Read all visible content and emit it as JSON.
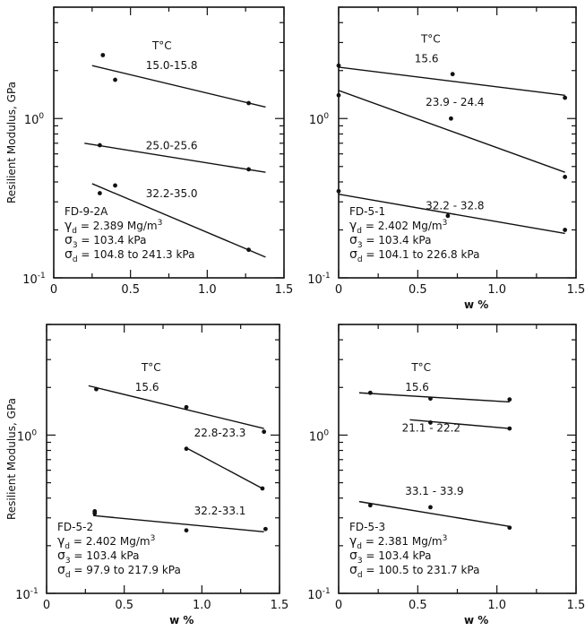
{
  "chart_data": [
    {
      "type": "scatter",
      "panel": "FD-9-2A",
      "specimen": "FD-9-2A",
      "xlabel": "",
      "ylabel": "Resilient Modulus, GPa",
      "xlim": [
        0,
        1.5
      ],
      "ylim": [
        0.1,
        5
      ],
      "yscale": "log",
      "x_ticks": [
        "0",
        "0.5",
        "1.0",
        "1.5"
      ],
      "y_ticks": [
        {
          "base": "10",
          "exp": "0",
          "value": 1
        },
        {
          "base": "10",
          "exp": "-1",
          "value": 0.1
        }
      ],
      "legend_title": "T°C",
      "conditions": [
        {
          "base": "γ",
          "sub": "d",
          "text": " = 2.389 Mg/m",
          "sup": "3"
        },
        {
          "base": "σ",
          "sub": "3",
          "text": " = 103.4 kPa",
          "sup": ""
        },
        {
          "base": "σ",
          "sub": "d",
          "text": " = 104.8 to 241.3 kPa",
          "sup": ""
        }
      ],
      "series": [
        {
          "name": "15.0-15.8",
          "points": [
            [
              0.32,
              2.5
            ],
            [
              0.4,
              1.75
            ],
            [
              1.27,
              1.25
            ]
          ],
          "fit": [
            [
              0.25,
              2.15
            ],
            [
              1.38,
              1.18
            ]
          ],
          "label_at": [
            0.6,
            2.05
          ]
        },
        {
          "name": "25.0-25.6",
          "points": [
            [
              0.3,
              0.68
            ],
            [
              1.27,
              0.48
            ]
          ],
          "fit": [
            [
              0.2,
              0.7
            ],
            [
              1.38,
              0.46
            ]
          ],
          "label_at": [
            0.6,
            0.64
          ]
        },
        {
          "name": "32.2-35.0",
          "points": [
            [
              0.3,
              0.34
            ],
            [
              0.4,
              0.38
            ],
            [
              1.27,
              0.15
            ]
          ],
          "fit": [
            [
              0.25,
              0.39
            ],
            [
              1.38,
              0.135
            ]
          ],
          "label_at": [
            0.6,
            0.32
          ]
        }
      ]
    },
    {
      "type": "scatter",
      "panel": "FD-5-1",
      "specimen": "FD-5-1",
      "xlabel": "w %",
      "ylabel": "",
      "xlim": [
        0,
        1.5
      ],
      "ylim": [
        0.1,
        5
      ],
      "yscale": "log",
      "x_ticks": [
        "0",
        "0.5",
        "1.0",
        "1.5"
      ],
      "y_ticks": [
        {
          "base": "10",
          "exp": "0",
          "value": 1
        },
        {
          "base": "10",
          "exp": "-1",
          "value": 0.1
        }
      ],
      "legend_title": "T°C",
      "conditions": [
        {
          "base": "γ",
          "sub": "d",
          "text": " = 2.402 Mg/m",
          "sup": "3"
        },
        {
          "base": "σ",
          "sub": "3",
          "text": " = 103.4 kPa",
          "sup": ""
        },
        {
          "base": "σ",
          "sub": "d",
          "text": " = 104.1 to 226.8 kPa",
          "sup": ""
        }
      ],
      "series": [
        {
          "name": "15.6",
          "points": [
            [
              0.0,
              2.15
            ],
            [
              0.72,
              1.9
            ],
            [
              1.43,
              1.35
            ]
          ],
          "fit": [
            [
              0.0,
              2.1
            ],
            [
              1.43,
              1.4
            ]
          ],
          "label_at": [
            0.48,
            2.25
          ]
        },
        {
          "name": "23.9 - 24.4",
          "points": [
            [
              0.0,
              1.4
            ],
            [
              0.71,
              1.0
            ],
            [
              1.43,
              0.43
            ]
          ],
          "fit": [
            [
              0.0,
              1.5
            ],
            [
              1.43,
              0.46
            ]
          ],
          "label_at": [
            0.55,
            1.2
          ]
        },
        {
          "name": "32.2 - 32.8",
          "points": [
            [
              0.0,
              0.35
            ],
            [
              0.69,
              0.245
            ],
            [
              1.43,
              0.2
            ]
          ],
          "fit": [
            [
              0.0,
              0.335
            ],
            [
              1.43,
              0.19
            ]
          ],
          "label_at": [
            0.55,
            0.27
          ]
        }
      ]
    },
    {
      "type": "scatter",
      "panel": "FD-5-2",
      "specimen": "FD-5-2",
      "xlabel": "w %",
      "ylabel": "Resilient Modulus, GPa",
      "xlim": [
        0,
        1.5
      ],
      "ylim": [
        0.1,
        5
      ],
      "yscale": "log",
      "x_ticks": [
        "0",
        "0.5",
        "1.0",
        "1.5"
      ],
      "y_ticks": [
        {
          "base": "10",
          "exp": "0",
          "value": 1
        },
        {
          "base": "10",
          "exp": "-1",
          "value": 0.1
        }
      ],
      "legend_title": "T°C",
      "conditions": [
        {
          "base": "γ",
          "sub": "d",
          "text": " = 2.402 Mg/m",
          "sup": "3"
        },
        {
          "base": "σ",
          "sub": "3",
          "text": " = 103.4 kPa",
          "sup": ""
        },
        {
          "base": "σ",
          "sub": "d",
          "text": " = 97.9 to 217.9 kPa",
          "sup": ""
        }
      ],
      "series": [
        {
          "name": "15.6",
          "points": [
            [
              0.32,
              1.95
            ],
            [
              0.9,
              1.5
            ],
            [
              1.4,
              1.05
            ]
          ],
          "fit": [
            [
              0.27,
              2.05
            ],
            [
              1.4,
              1.1
            ]
          ],
          "label_at": [
            0.57,
            1.9
          ]
        },
        {
          "name": "22.8-23.3",
          "points": [
            [
              0.9,
              0.82
            ],
            [
              1.39,
              0.46
            ]
          ],
          "fit": [
            [
              0.9,
              0.83
            ],
            [
              1.39,
              0.46
            ]
          ],
          "label_at": [
            0.95,
            0.98
          ]
        },
        {
          "name": "32.2-33.1",
          "points": [
            [
              0.31,
              0.33
            ],
            [
              0.31,
              0.32
            ],
            [
              0.9,
              0.25
            ],
            [
              1.41,
              0.255
            ]
          ],
          "fit": [
            [
              0.3,
              0.31
            ],
            [
              1.4,
              0.245
            ]
          ],
          "label_at": [
            0.95,
            0.315
          ]
        }
      ]
    },
    {
      "type": "scatter",
      "panel": "FD-5-3",
      "specimen": "FD-5-3",
      "xlabel": "w %",
      "ylabel": "",
      "xlim": [
        0,
        1.5
      ],
      "ylim": [
        0.1,
        5
      ],
      "yscale": "log",
      "x_ticks": [
        "0",
        "0.5",
        "1.0",
        "1.5"
      ],
      "y_ticks": [
        {
          "base": "10",
          "exp": "0",
          "value": 1
        },
        {
          "base": "10",
          "exp": "-1",
          "value": 0.1
        }
      ],
      "legend_title": "T°C",
      "conditions": [
        {
          "base": "γ",
          "sub": "d",
          "text": " = 2.381 Mg/m",
          "sup": "3"
        },
        {
          "base": "σ",
          "sub": "3",
          "text": " = 103.4 kPa",
          "sup": ""
        },
        {
          "base": "σ",
          "sub": "d",
          "text": " = 100.5 to 231.7 kPa",
          "sup": ""
        }
      ],
      "series": [
        {
          "name": "15.6",
          "points": [
            [
              0.2,
              1.85
            ],
            [
              0.58,
              1.7
            ],
            [
              1.08,
              1.68
            ]
          ],
          "fit": [
            [
              0.13,
              1.85
            ],
            [
              1.08,
              1.62
            ]
          ],
          "label_at": [
            0.42,
            1.9
          ]
        },
        {
          "name": "21.1 - 22.2",
          "points": [
            [
              0.58,
              1.2
            ],
            [
              1.08,
              1.1
            ]
          ],
          "fit": [
            [
              0.45,
              1.25
            ],
            [
              1.08,
              1.1
            ]
          ],
          "label_at": [
            0.4,
            1.05
          ]
        },
        {
          "name": "33.1 - 33.9",
          "points": [
            [
              0.2,
              0.36
            ],
            [
              0.58,
              0.35
            ],
            [
              1.08,
              0.26
            ]
          ],
          "fit": [
            [
              0.13,
              0.38
            ],
            [
              1.08,
              0.265
            ]
          ],
          "label_at": [
            0.42,
            0.42
          ]
        }
      ]
    }
  ]
}
